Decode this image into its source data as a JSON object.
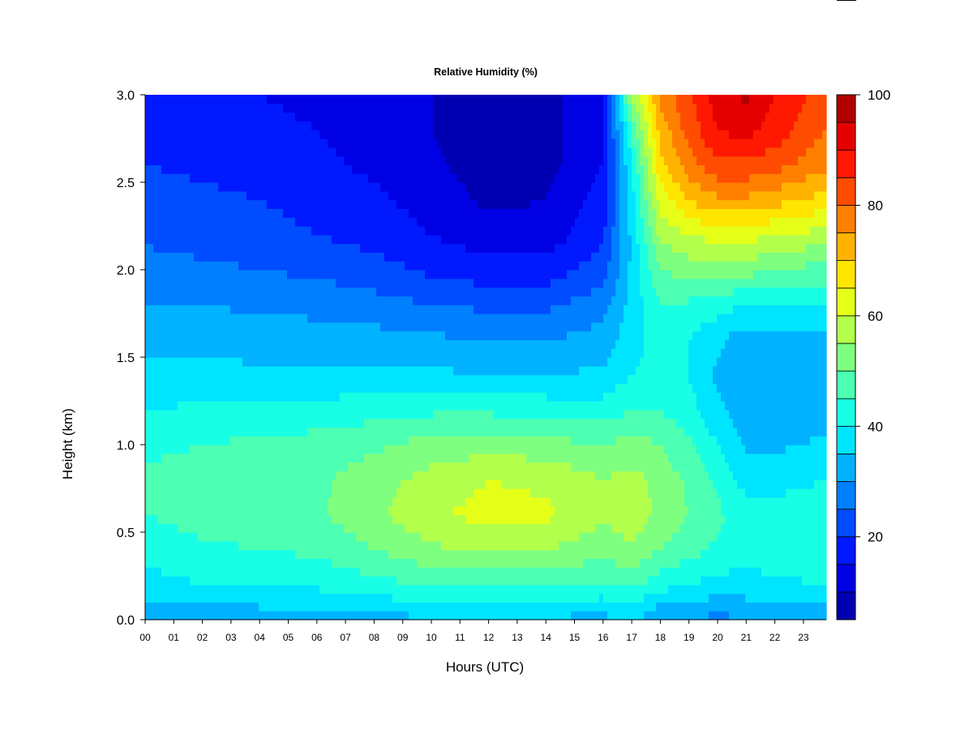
{
  "chart_data": {
    "type": "heatmap",
    "title": "Relative Humidity (%)",
    "xlabel": "Hours (UTC)",
    "ylabel": "Height (km)",
    "x_tick_labels": [
      "00",
      "01",
      "02",
      "03",
      "04",
      "05",
      "06",
      "07",
      "08",
      "09",
      "10",
      "11",
      "12",
      "13",
      "14",
      "15",
      "16",
      "17",
      "18",
      "19",
      "20",
      "21",
      "22",
      "23"
    ],
    "xlim": [
      0,
      23.8
    ],
    "y_ticks": [
      "0.0",
      "0.5",
      "1.0",
      "1.5",
      "2.0",
      "2.5",
      "3.0"
    ],
    "ylim": [
      0,
      3.0
    ],
    "colorbar": {
      "levels": [
        5,
        10,
        15,
        20,
        25,
        30,
        35,
        40,
        45,
        50,
        55,
        60,
        65,
        70,
        75,
        80,
        85,
        90,
        95,
        100
      ],
      "tick_labels": [
        "20",
        "40",
        "60",
        "80",
        "100"
      ],
      "colors": [
        "#00007f",
        "#0000b2",
        "#0000e5",
        "#0019ff",
        "#004cff",
        "#007fff",
        "#00b2ff",
        "#00e5ff",
        "#19ffe5",
        "#4cffb2",
        "#7fff7f",
        "#b2ff4c",
        "#e5ff19",
        "#ffe500",
        "#ffb200",
        "#ff7f00",
        "#ff4c00",
        "#ff1900",
        "#e50000",
        "#b20000",
        "#7f0000"
      ]
    },
    "profiles": [
      {
        "hour": 0,
        "rh": [
          30,
          38,
          42,
          45,
          46,
          44,
          40,
          36,
          34,
          30,
          27,
          24,
          22,
          20,
          18,
          17
        ]
      },
      {
        "hour": 2,
        "rh": [
          31,
          40,
          44,
          47,
          47,
          45,
          41,
          36,
          34,
          30,
          26,
          23,
          21,
          19,
          17,
          16
        ]
      },
      {
        "hour": 4,
        "rh": [
          32,
          40,
          45,
          48,
          48,
          46,
          42,
          36,
          33,
          29,
          25,
          22,
          20,
          18,
          16,
          15
        ]
      },
      {
        "hour": 6,
        "rh": [
          32,
          41,
          46,
          49,
          49,
          47,
          42,
          36,
          33,
          28,
          24,
          20,
          18,
          16,
          15,
          14
        ]
      },
      {
        "hour": 8,
        "rh": [
          33,
          43,
          50,
          54,
          53,
          49,
          43,
          36,
          32,
          27,
          22,
          18,
          16,
          14,
          13,
          12
        ]
      },
      {
        "hour": 10,
        "rh": [
          34,
          46,
          54,
          59,
          57,
          52,
          44,
          36,
          31,
          25,
          19,
          15,
          13,
          11,
          10,
          10
        ]
      },
      {
        "hour": 12,
        "rh": [
          34,
          46,
          56,
          62,
          60,
          53,
          44,
          35,
          30,
          24,
          17,
          12,
          9,
          7,
          6,
          7
        ]
      },
      {
        "hour": 14,
        "rh": [
          34,
          46,
          55,
          61,
          59,
          52,
          43,
          35,
          30,
          24,
          17,
          12,
          10,
          8,
          8,
          9
        ]
      },
      {
        "hour": 16,
        "rh": [
          33,
          44,
          52,
          56,
          55,
          50,
          42,
          36,
          32,
          28,
          23,
          19,
          17,
          15,
          14,
          13
        ]
      },
      {
        "hour": 17,
        "rh": [
          36,
          46,
          54,
          58,
          57,
          52,
          45,
          40,
          38,
          37,
          36,
          36,
          38,
          40,
          45,
          55
        ]
      },
      {
        "hour": 18,
        "rh": [
          30,
          42,
          50,
          54,
          53,
          50,
          45,
          42,
          42,
          45,
          50,
          56,
          62,
          68,
          72,
          76
        ]
      },
      {
        "hour": 19,
        "rh": [
          30,
          40,
          47,
          50,
          49,
          46,
          42,
          40,
          40,
          44,
          52,
          60,
          70,
          78,
          82,
          84
        ]
      },
      {
        "hour": 20,
        "rh": [
          28,
          38,
          44,
          46,
          44,
          40,
          36,
          34,
          36,
          42,
          52,
          62,
          74,
          84,
          90,
          93
        ]
      },
      {
        "hour": 21,
        "rh": [
          30,
          38,
          42,
          42,
          38,
          34,
          32,
          30,
          32,
          40,
          52,
          62,
          74,
          84,
          92,
          96
        ]
      },
      {
        "hour": 22,
        "rh": [
          32,
          39,
          43,
          42,
          38,
          34,
          31,
          30,
          32,
          40,
          50,
          60,
          72,
          82,
          88,
          90
        ]
      },
      {
        "hour": 23.8,
        "rh": [
          32,
          40,
          44,
          44,
          40,
          36,
          33,
          31,
          33,
          40,
          48,
          58,
          68,
          76,
          80,
          82
        ]
      }
    ],
    "profile_heights_km": [
      0.0,
      0.2,
      0.4,
      0.6,
      0.8,
      1.0,
      1.2,
      1.4,
      1.6,
      1.8,
      2.0,
      2.2,
      2.4,
      2.6,
      2.8,
      3.0
    ]
  }
}
